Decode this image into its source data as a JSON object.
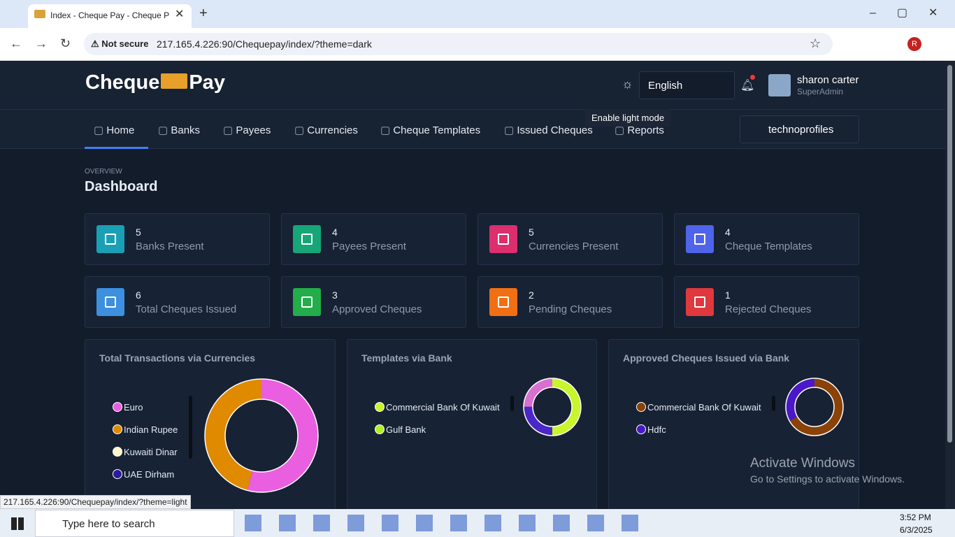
{
  "browser": {
    "tab_title": "Index - Cheque Pay - Cheque P",
    "security": "Not secure",
    "url": "217.165.4.226:90/Chequepay/index/?theme=dark",
    "profile": "R",
    "status_url": "217.165.4.226:90/Chequepay/index/?theme=light"
  },
  "header": {
    "logo_left": "Cheque",
    "logo_right": "Pay",
    "language": "English",
    "user_name": "sharon carter",
    "user_role": "SuperAdmin",
    "tooltip": "Enable light mode"
  },
  "nav": {
    "items": [
      "Home",
      "Banks",
      "Payees",
      "Currencies",
      "Cheque Templates",
      "Issued Cheques",
      "Reports"
    ],
    "company": "technoprofiles"
  },
  "page": {
    "eyebrow": "OVERVIEW",
    "title": "Dashboard"
  },
  "stats": [
    {
      "value": 5,
      "label": "Banks Present",
      "color": "#1a9fb4"
    },
    {
      "value": 4,
      "label": "Payees Present",
      "color": "#17a678"
    },
    {
      "value": 5,
      "label": "Currencies Present",
      "color": "#dc2f6d"
    },
    {
      "value": 4,
      "label": "Cheque Templates",
      "color": "#4f64ea"
    },
    {
      "value": 6,
      "label": "Total Cheques Issued",
      "color": "#3d8fdf"
    },
    {
      "value": 3,
      "label": "Approved Cheques",
      "color": "#22ad4a"
    },
    {
      "value": 2,
      "label": "Pending Cheques",
      "color": "#f06f14"
    },
    {
      "value": 1,
      "label": "Rejected Cheques",
      "color": "#df383d"
    }
  ],
  "charts": [
    {
      "title": "Total Transactions via Currencies",
      "segments": [
        {
          "name": "Euro",
          "color": "#ea5ee0",
          "value": 54
        },
        {
          "name": "Indian Rupee",
          "color": "#e08a00",
          "value": 46
        },
        {
          "name": "Kuwaiti Dinar",
          "color": "#fff6c8",
          "value": 0
        },
        {
          "name": "UAE Dirham",
          "color": "#2a1a9e",
          "value": 0
        }
      ]
    },
    {
      "title": "Templates via Bank",
      "segments": [
        {
          "name": "Commercial Bank Of Kuwait",
          "color": "#c8f52c",
          "value": 2
        },
        {
          "name": "Gulf Bank",
          "color": "#b3ee2a",
          "value": 0
        },
        {
          "color": "#4b26c8",
          "value": 1
        },
        {
          "color": "#d96fd0",
          "value": 1
        }
      ]
    },
    {
      "title": "Approved Cheques Issued via Bank",
      "segments": [
        {
          "name": "Commercial Bank Of Kuwait",
          "color": "#8a4208",
          "value": 2
        },
        {
          "name": "Hdfc",
          "color": "#4a18c8",
          "value": 1
        }
      ]
    }
  ],
  "watermark": {
    "title": "Activate Windows",
    "subtitle": "Go to Settings to activate Windows."
  },
  "taskbar": {
    "search": "Type here to search",
    "time": "3:52 PM",
    "date": "6/3/2025"
  }
}
